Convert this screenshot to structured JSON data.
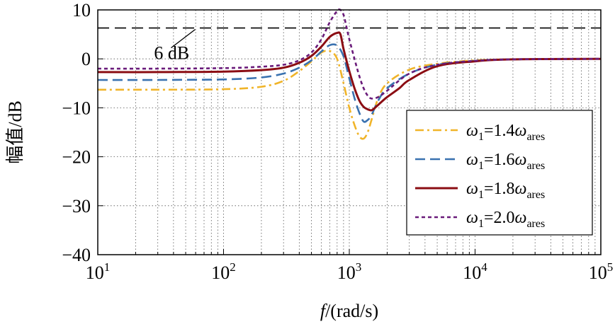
{
  "chart_data": {
    "type": "line",
    "xscale": "log",
    "xlim": [
      10,
      100000
    ],
    "ylim": [
      -40,
      10
    ],
    "xlabel": {
      "italic": "f",
      "rest": "/(rad/s)"
    },
    "ylabel": "幅值/dB",
    "x_ticks": [
      {
        "base": "10",
        "exp": "1"
      },
      {
        "base": "10",
        "exp": "2"
      },
      {
        "base": "10",
        "exp": "3"
      },
      {
        "base": "10",
        "exp": "4"
      },
      {
        "base": "10",
        "exp": "5"
      }
    ],
    "y_ticks": [
      "10",
      "0",
      "−10",
      "−20",
      "−30",
      "−40"
    ],
    "y_tick_values": [
      10,
      0,
      -10,
      -20,
      -30,
      -40
    ],
    "grid": true,
    "reference_line": {
      "y": 6.3,
      "label": "6 dB",
      "color": "#000000"
    },
    "legend_position": "lower-right",
    "series": [
      {
        "name": "ω1=1.4ωares",
        "legend": {
          "w": "ω",
          "sub1": "1",
          "mid": "=1.4",
          "w2": "ω",
          "sub2": "ares"
        },
        "color": "#f0b429",
        "dash": "12,5,3,5",
        "x": [
          10,
          30,
          100,
          200,
          300,
          400,
          500,
          600,
          700,
          800,
          900,
          1000,
          1100,
          1200,
          1300,
          1400,
          1500,
          1700,
          2000,
          3000,
          5000,
          10000,
          20000,
          100000
        ],
        "y": [
          -6.3,
          -6.3,
          -6.2,
          -5.7,
          -4.5,
          -2.5,
          -0.5,
          1.3,
          1.6,
          0,
          -5,
          -10,
          -13.5,
          -15.8,
          -16.3,
          -15,
          -12.5,
          -8,
          -5,
          -2.2,
          -1,
          -0.3,
          -0.1,
          0
        ]
      },
      {
        "name": "ω1=1.6ωares",
        "legend": {
          "w": "ω",
          "sub1": "1",
          "mid": "=1.6",
          "w2": "ω",
          "sub2": "ares"
        },
        "color": "#3a72b0",
        "dash": "14,7",
        "x": [
          10,
          30,
          100,
          200,
          300,
          400,
          500,
          600,
          700,
          800,
          900,
          1000,
          1100,
          1200,
          1300,
          1400,
          1500,
          1700,
          2000,
          3000,
          5000,
          10000,
          20000,
          100000
        ],
        "y": [
          -4.3,
          -4.3,
          -4.2,
          -3.8,
          -3,
          -1.8,
          -0.3,
          1.5,
          2.8,
          2.7,
          0.5,
          -4,
          -8,
          -11,
          -12.8,
          -12.5,
          -11.5,
          -8.5,
          -6,
          -3,
          -1.2,
          -0.4,
          -0.1,
          0
        ]
      },
      {
        "name": "ω1=1.8ωares",
        "legend": {
          "w": "ω",
          "sub1": "1",
          "mid": "=1.8",
          "w2": "ω",
          "sub2": "ares"
        },
        "color": "#8b0d13",
        "dash": "",
        "x": [
          10,
          30,
          100,
          200,
          300,
          400,
          500,
          600,
          700,
          800,
          850,
          900,
          1000,
          1100,
          1200,
          1300,
          1400,
          1500,
          1600,
          1800,
          2000,
          2500,
          3000,
          5000,
          10000,
          20000,
          100000
        ],
        "y": [
          -2.7,
          -2.7,
          -2.6,
          -2.3,
          -1.8,
          -0.8,
          0.6,
          2.5,
          4.5,
          5.3,
          5,
          2,
          -2.5,
          -6,
          -8.5,
          -9.8,
          -10.3,
          -10.5,
          -10,
          -8.8,
          -7.8,
          -6,
          -4.3,
          -1.5,
          -0.5,
          -0.1,
          0
        ]
      },
      {
        "name": "ω1=2.0ωares",
        "legend": {
          "w": "ω",
          "sub1": "1",
          "mid": "=2.0",
          "w2": "ω",
          "sub2": "ares"
        },
        "color": "#6a1b7a",
        "dash": "5,4",
        "x": [
          10,
          30,
          100,
          200,
          300,
          400,
          500,
          600,
          700,
          800,
          850,
          900,
          950,
          1000,
          1100,
          1200,
          1300,
          1400,
          1500,
          1700,
          2000,
          3000,
          5000,
          10000,
          20000,
          100000
        ],
        "y": [
          -2,
          -2,
          -1.9,
          -1.6,
          -1.2,
          -0.3,
          1.3,
          4,
          7.5,
          9.8,
          10,
          9,
          6.5,
          4,
          0,
          -3.5,
          -6,
          -7.5,
          -8.1,
          -7.8,
          -6.5,
          -3,
          -1.2,
          -0.4,
          -0.1,
          0
        ]
      }
    ]
  }
}
